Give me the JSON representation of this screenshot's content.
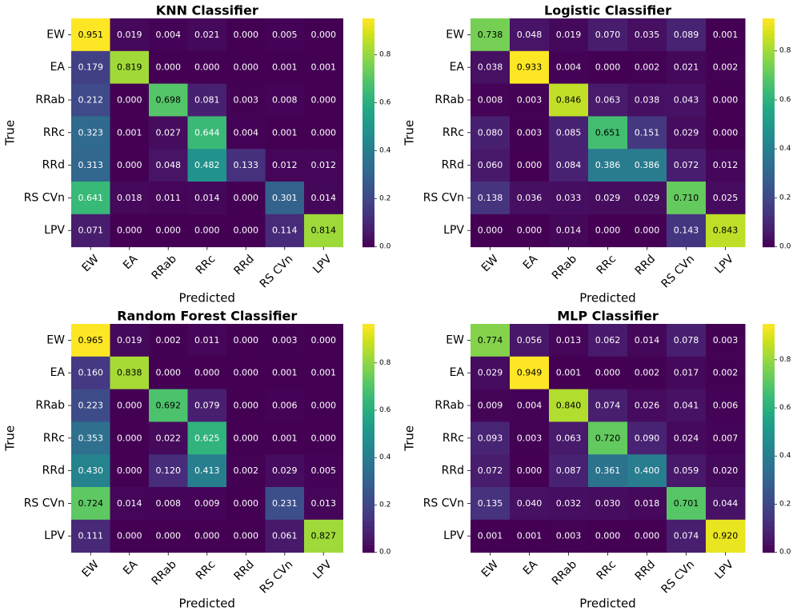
{
  "chart_data": [
    {
      "type": "heatmap",
      "title": "KNN Classifier",
      "xlabel": "Predicted",
      "ylabel": "True",
      "x_categories": [
        "EW",
        "EA",
        "RRab",
        "RRc",
        "RRd",
        "RS CVn",
        "LPV"
      ],
      "y_categories": [
        "EW",
        "EA",
        "RRab",
        "RRc",
        "RRd",
        "RS CVn",
        "LPV"
      ],
      "values": [
        [
          0.951,
          0.019,
          0.004,
          0.021,
          0.0,
          0.005,
          0.0
        ],
        [
          0.179,
          0.819,
          0.0,
          0.0,
          0.0,
          0.001,
          0.001
        ],
        [
          0.212,
          0.0,
          0.698,
          0.081,
          0.003,
          0.008,
          0.0
        ],
        [
          0.323,
          0.001,
          0.027,
          0.644,
          0.004,
          0.001,
          0.0
        ],
        [
          0.313,
          0.0,
          0.048,
          0.482,
          0.133,
          0.012,
          0.012
        ],
        [
          0.641,
          0.018,
          0.011,
          0.014,
          0.0,
          0.301,
          0.014
        ],
        [
          0.071,
          0.0,
          0.0,
          0.0,
          0.0,
          0.114,
          0.814
        ]
      ],
      "colorbar": {
        "colormap": "viridis",
        "vmin": 0.0,
        "vmax": 0.951,
        "ticks": [
          0.0,
          0.2,
          0.4,
          0.6,
          0.8
        ],
        "tick_labels": [
          "0.0",
          "0.2",
          "0.4",
          "0.6",
          "0.8"
        ]
      }
    },
    {
      "type": "heatmap",
      "title": "Logistic Classifier",
      "xlabel": "Predicted",
      "ylabel": "True",
      "x_categories": [
        "EW",
        "EA",
        "RRab",
        "RRc",
        "RRd",
        "RS CVn",
        "LPV"
      ],
      "y_categories": [
        "EW",
        "EA",
        "RRab",
        "RRc",
        "RRd",
        "RS CVn",
        "LPV"
      ],
      "values": [
        [
          0.738,
          0.048,
          0.019,
          0.07,
          0.035,
          0.089,
          0.001
        ],
        [
          0.038,
          0.933,
          0.004,
          0.0,
          0.002,
          0.021,
          0.002
        ],
        [
          0.008,
          0.003,
          0.846,
          0.063,
          0.038,
          0.043,
          0.0
        ],
        [
          0.08,
          0.003,
          0.085,
          0.651,
          0.151,
          0.029,
          0.0
        ],
        [
          0.06,
          0.0,
          0.084,
          0.386,
          0.386,
          0.072,
          0.012
        ],
        [
          0.138,
          0.036,
          0.033,
          0.029,
          0.029,
          0.71,
          0.025
        ],
        [
          0.0,
          0.0,
          0.014,
          0.0,
          0.0,
          0.143,
          0.843
        ]
      ],
      "colorbar": {
        "colormap": "viridis",
        "vmin": 0.0,
        "vmax": 0.933,
        "ticks": [
          0.0,
          0.2,
          0.4,
          0.6,
          0.8
        ],
        "tick_labels": [
          "0.0",
          "0.2",
          "0.4",
          "0.6",
          "0.8"
        ]
      }
    },
    {
      "type": "heatmap",
      "title": "Random Forest Classifier",
      "xlabel": "Predicted",
      "ylabel": "True",
      "x_categories": [
        "EW",
        "EA",
        "RRab",
        "RRc",
        "RRd",
        "RS CVn",
        "LPV"
      ],
      "y_categories": [
        "EW",
        "EA",
        "RRab",
        "RRc",
        "RRd",
        "RS CVn",
        "LPV"
      ],
      "values": [
        [
          0.965,
          0.019,
          0.002,
          0.011,
          0.0,
          0.003,
          0.0
        ],
        [
          0.16,
          0.838,
          0.0,
          0.0,
          0.0,
          0.001,
          0.001
        ],
        [
          0.223,
          0.0,
          0.692,
          0.079,
          0.0,
          0.006,
          0.0
        ],
        [
          0.353,
          0.0,
          0.022,
          0.625,
          0.0,
          0.001,
          0.0
        ],
        [
          0.43,
          0.0,
          0.12,
          0.413,
          0.002,
          0.029,
          0.005
        ],
        [
          0.724,
          0.014,
          0.008,
          0.009,
          0.0,
          0.231,
          0.013
        ],
        [
          0.111,
          0.0,
          0.0,
          0.0,
          0.0,
          0.061,
          0.827
        ]
      ],
      "colorbar": {
        "colormap": "viridis",
        "vmin": 0.0,
        "vmax": 0.965,
        "ticks": [
          0.0,
          0.2,
          0.4,
          0.6,
          0.8
        ],
        "tick_labels": [
          "0.0",
          "0.2",
          "0.4",
          "0.6",
          "0.8"
        ]
      }
    },
    {
      "type": "heatmap",
      "title": "MLP Classifier",
      "xlabel": "Predicted",
      "ylabel": "True",
      "x_categories": [
        "EW",
        "EA",
        "RRab",
        "RRc",
        "RRd",
        "RS CVn",
        "LPV"
      ],
      "y_categories": [
        "EW",
        "EA",
        "RRab",
        "RRc",
        "RRd",
        "RS CVn",
        "LPV"
      ],
      "values": [
        [
          0.774,
          0.056,
          0.013,
          0.062,
          0.014,
          0.078,
          0.003
        ],
        [
          0.029,
          0.949,
          0.001,
          0.0,
          0.002,
          0.017,
          0.002
        ],
        [
          0.009,
          0.004,
          0.84,
          0.074,
          0.026,
          0.041,
          0.006
        ],
        [
          0.093,
          0.003,
          0.063,
          0.72,
          0.09,
          0.024,
          0.007
        ],
        [
          0.072,
          0.0,
          0.087,
          0.361,
          0.4,
          0.059,
          0.02
        ],
        [
          0.135,
          0.04,
          0.032,
          0.03,
          0.018,
          0.701,
          0.044
        ],
        [
          0.001,
          0.001,
          0.003,
          0.0,
          0.0,
          0.074,
          0.92
        ]
      ],
      "colorbar": {
        "colormap": "viridis",
        "vmin": 0.0,
        "vmax": 0.949,
        "ticks": [
          0.0,
          0.2,
          0.4,
          0.6,
          0.8
        ],
        "tick_labels": [
          "0.0",
          "0.2",
          "0.4",
          "0.6",
          "0.8"
        ]
      }
    }
  ]
}
